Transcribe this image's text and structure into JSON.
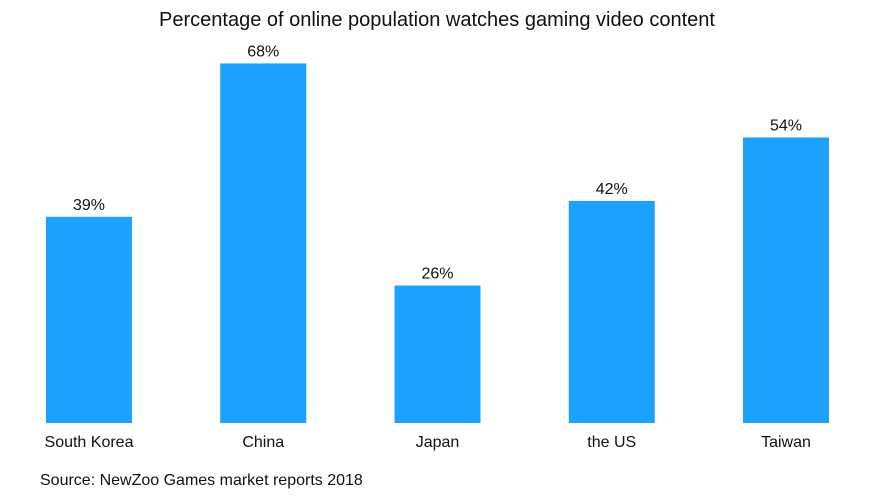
{
  "chart_data": {
    "type": "bar",
    "title": "Percentage of online population watches gaming video content",
    "categories": [
      "South Korea",
      "China",
      "Japan",
      "the US",
      "Taiwan"
    ],
    "values": [
      39,
      68,
      26,
      42,
      54
    ],
    "data_labels": [
      "39%",
      "68%",
      "26%",
      "42%",
      "54%"
    ],
    "xlabel": "",
    "ylabel": "",
    "ylim": [
      0,
      80
    ],
    "grid": false,
    "color": "#1DA1FF",
    "source": "Source: NewZoo Games market reports 2018"
  }
}
